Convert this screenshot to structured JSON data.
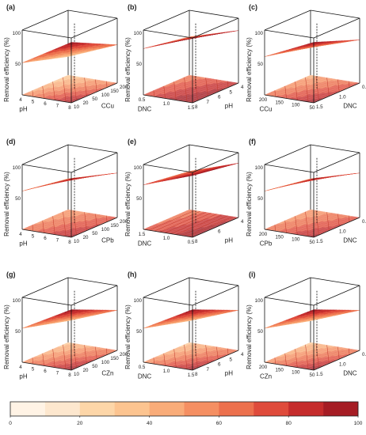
{
  "chart_data": {
    "type": "surface3d",
    "colorbar": {
      "ticks": [
        "0",
        "20",
        "40",
        "60",
        "80",
        "100"
      ],
      "min": 0,
      "max": 100,
      "bins": 10,
      "colors": [
        "#FFF3E5",
        "#FDE7CE",
        "#FDD6A8",
        "#FCC490",
        "#F9AC79",
        "#F58F62",
        "#EC704D",
        "#DF4B3B",
        "#C52C2C",
        "#A51C24"
      ]
    },
    "panels": [
      {
        "label": "(a)",
        "zlabel": "Removal efficiency (%)",
        "zticks": [
          "100",
          "50"
        ],
        "x_name": "pH",
        "x_ticks": [
          "4",
          "5",
          "6",
          "7",
          "8"
        ],
        "y_name": "CCu",
        "y_ticks": [
          "10",
          "20",
          "50",
          "100",
          "150",
          "200"
        ],
        "z_corners": [
          52,
          98,
          30,
          62
        ],
        "contours": "diag"
      },
      {
        "label": "(b)",
        "zlabel": "Removal efficiency (%)",
        "zticks": [
          "100",
          "50"
        ],
        "x_name": "DNC",
        "x_ticks": [
          "0.5",
          "1.0",
          "1.5"
        ],
        "y_name": "pH",
        "y_ticks": [
          "8",
          "7",
          "6",
          "5",
          "4"
        ],
        "z_corners": [
          75,
          105,
          62,
          85
        ],
        "contours": "diag"
      },
      {
        "label": "(c)",
        "zlabel": "Removal efficiency (%)",
        "zticks": [
          "100",
          "50"
        ],
        "x_name": "CCu",
        "x_ticks": [
          "200",
          "150",
          "100",
          "50"
        ],
        "y_name": "DNC",
        "y_ticks": [
          "1.5",
          "1.0",
          "0.5"
        ],
        "z_corners": [
          62,
          98,
          45,
          70
        ],
        "contours": "diag"
      },
      {
        "label": "(d)",
        "zlabel": "Removal efficiency (%)",
        "zticks": [
          "100",
          "50"
        ],
        "x_name": "pH",
        "x_ticks": [
          "4",
          "5",
          "6",
          "7",
          "8"
        ],
        "y_name": "CPb",
        "y_ticks": [
          "10",
          "20",
          "50",
          "100",
          "150",
          "200"
        ],
        "z_corners": [
          62,
          95,
          50,
          72
        ],
        "contours": "diag"
      },
      {
        "label": "(e)",
        "zlabel": "Removal efficiency (%)",
        "zticks": [
          "100",
          "50"
        ],
        "x_name": "DNC",
        "x_ticks": [
          "1.5",
          "1.0",
          "0.5"
        ],
        "y_name": "pH",
        "y_ticks": [
          "8",
          "6",
          "4"
        ],
        "z_corners": [
          72,
          100,
          62,
          88
        ],
        "contours": "parallel"
      },
      {
        "label": "(f)",
        "zlabel": "Removal efficiency (%)",
        "zticks": [
          "100",
          "50"
        ],
        "x_name": "CPb",
        "x_ticks": [
          "200",
          "150",
          "100",
          "50"
        ],
        "y_name": "DNC",
        "y_ticks": [
          "1.5",
          "1.0",
          "0.5"
        ],
        "z_corners": [
          62,
          95,
          50,
          72
        ],
        "contours": "diag"
      },
      {
        "label": "(g)",
        "zlabel": "Removal efficiency (%)",
        "zticks": [
          "100",
          "50"
        ],
        "x_name": "pH",
        "x_ticks": [
          "4",
          "5",
          "6",
          "7",
          "8"
        ],
        "y_name": "CZn",
        "y_ticks": [
          "10",
          "20",
          "50",
          "100",
          "150",
          "200"
        ],
        "z_corners": [
          55,
          98,
          35,
          65
        ],
        "contours": "diag"
      },
      {
        "label": "(h)",
        "zlabel": "Removal efficiency (%)",
        "zticks": [
          "100",
          "50"
        ],
        "x_name": "DNC",
        "x_ticks": [
          "0.5",
          "1.0",
          "1.5"
        ],
        "y_name": "pH",
        "y_ticks": [
          "8",
          "7",
          "6",
          "5",
          "4"
        ],
        "z_corners": [
          55,
          98,
          35,
          65
        ],
        "contours": "diag"
      },
      {
        "label": "(i)",
        "zlabel": "Removal efficiency (%)",
        "zticks": [
          "100",
          "50"
        ],
        "x_name": "CZn",
        "x_ticks": [
          "200",
          "150",
          "100",
          "50"
        ],
        "y_name": "DNC",
        "y_ticks": [
          "1.5",
          "1.0",
          "0.5"
        ],
        "z_corners": [
          55,
          98,
          35,
          65
        ],
        "contours": "diag"
      }
    ]
  }
}
